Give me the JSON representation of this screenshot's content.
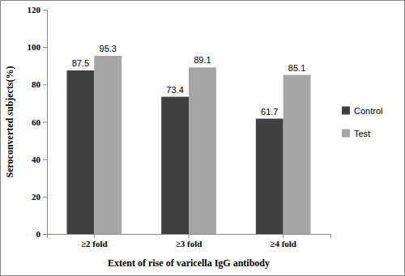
{
  "chart_data": {
    "type": "bar",
    "x_label": "Extent of rise of varicella IgG antibody",
    "y_label": "Seroconverted subjects(%)",
    "categories": [
      "≥2 fold",
      "≥3 fold",
      "≥4 fold"
    ],
    "series": [
      {
        "name": "Control",
        "color": "#404040",
        "values": [
          87.5,
          73.4,
          61.7
        ]
      },
      {
        "name": "Test",
        "color": "#a6a6a6",
        "values": [
          95.3,
          89.1,
          85.1
        ]
      }
    ],
    "ylim": [
      0,
      120
    ],
    "yticks": [
      0,
      20,
      40,
      60,
      80,
      100,
      120
    ],
    "grid": false,
    "legend": "right",
    "data_labels": true
  }
}
